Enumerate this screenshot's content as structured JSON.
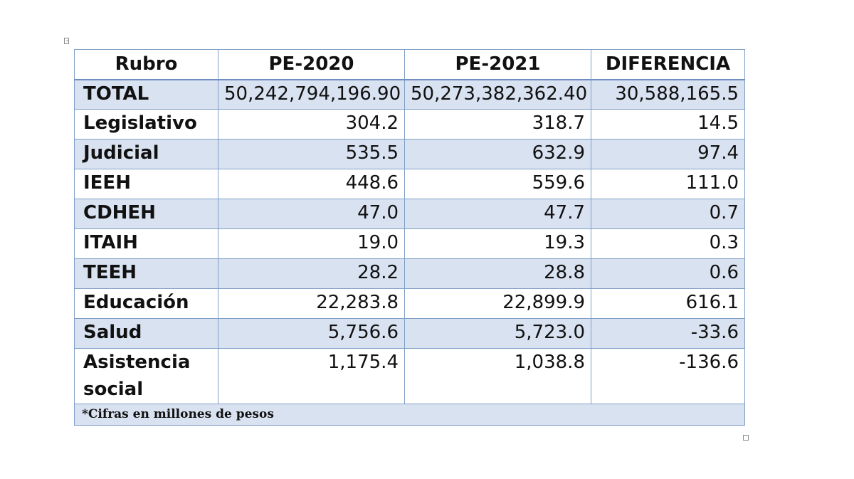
{
  "table": {
    "headers": [
      "Rubro",
      "PE-2020",
      "PE-2021",
      "DIFERENCIA"
    ],
    "rows": [
      [
        "TOTAL",
        "50,242,794,196.90",
        "50,273,382,362.40",
        "30,588,165.5"
      ],
      [
        "Legislativo",
        "304.2",
        "318.7",
        "14.5"
      ],
      [
        "Judicial",
        "535.5",
        "632.9",
        "97.4"
      ],
      [
        "IEEH",
        "448.6",
        "559.6",
        "111.0"
      ],
      [
        "CDHEH",
        "47.0",
        "47.7",
        "0.7"
      ],
      [
        "ITAIH",
        "19.0",
        "19.3",
        "0.3"
      ],
      [
        "TEEH",
        "28.2",
        "28.8",
        "0.6"
      ],
      [
        "Educación",
        "22,283.8",
        "22,899.9",
        "616.1"
      ],
      [
        "Salud",
        "5,756.6",
        "5,723.0",
        "-33.6"
      ],
      [
        "Asistencia social",
        "1,175.4",
        "1,038.8",
        "-136.6"
      ]
    ],
    "note": "*Cifras en millones de pesos"
  },
  "colors": {
    "band": "#d9e2f1",
    "border": "#7f9fc6"
  }
}
